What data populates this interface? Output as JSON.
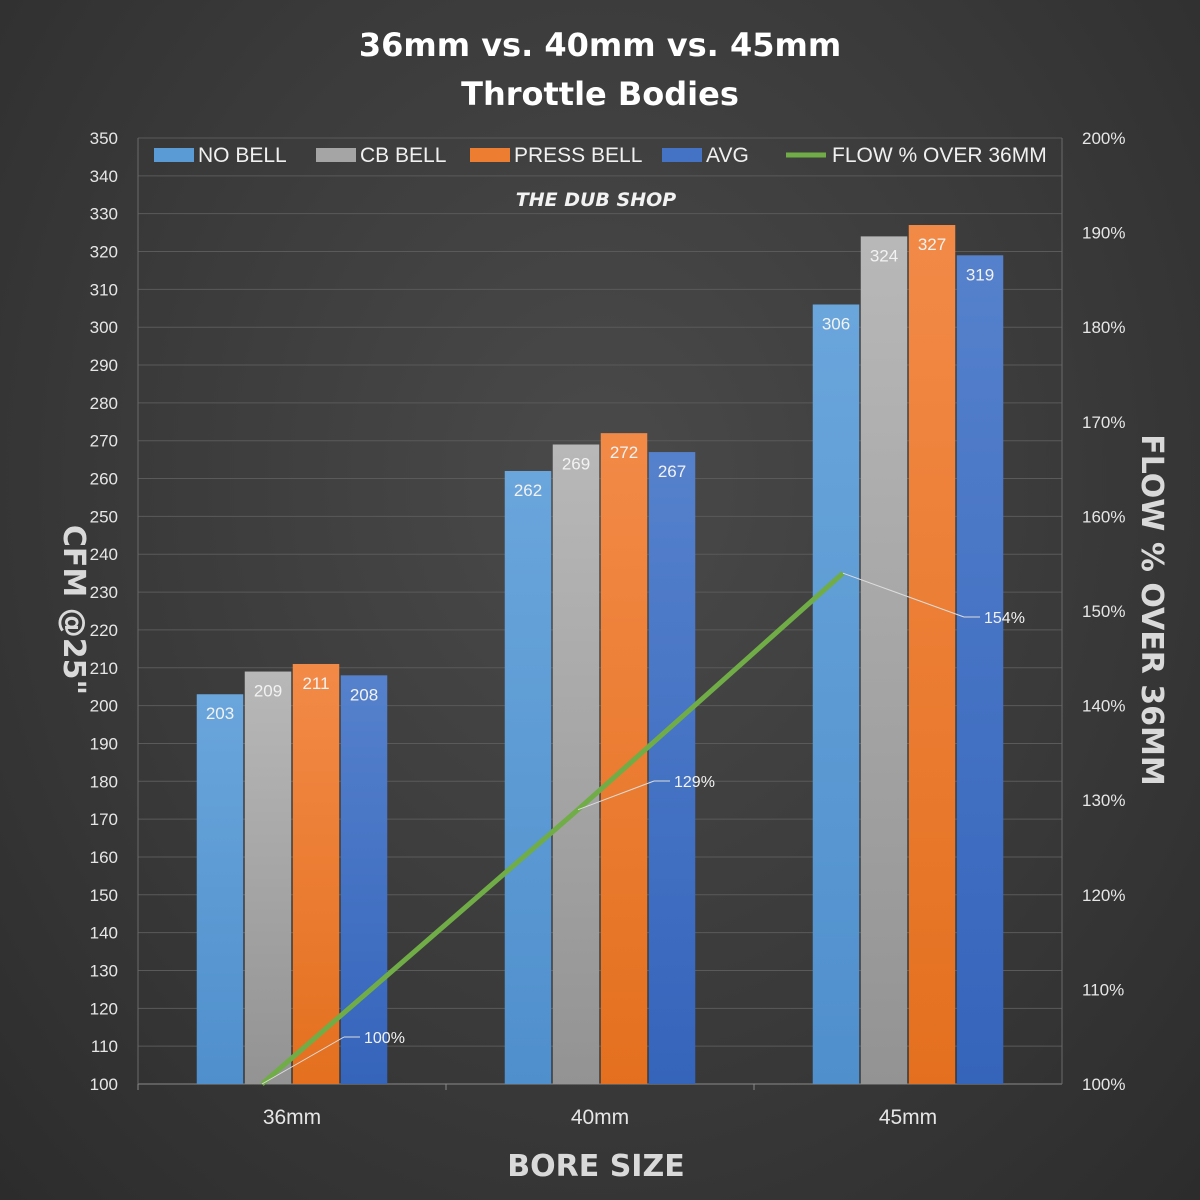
{
  "title_line1": "36mm vs. 40mm vs. 45mm",
  "title_line2": "Throttle Bodies",
  "watermark": "THE DUB SHOP",
  "chart_data": {
    "type": "bar",
    "categories": [
      "36mm",
      "40mm",
      "45mm"
    ],
    "series": [
      {
        "name": "NO BELL",
        "values": [
          203,
          262,
          306
        ],
        "color": "#5b9bd5"
      },
      {
        "name": "CB BELL",
        "values": [
          209,
          269,
          324
        ],
        "color": "#a5a5a5"
      },
      {
        "name": "PRESS BELL",
        "values": [
          211,
          272,
          327
        ],
        "color": "#ed7d31"
      },
      {
        "name": "AVG",
        "values": [
          208,
          267,
          319
        ],
        "color": "#4472c4"
      }
    ],
    "line_series": {
      "name": "FLOW % OVER 36MM",
      "values": [
        100,
        129,
        154
      ],
      "labels": [
        "100%",
        "129%",
        "154%"
      ],
      "color": "#70ad47"
    },
    "xlabel": "BORE SIZE",
    "ylabel": "CFM @25\"",
    "y2label": "FLOW % OVER 36MM",
    "ylim": [
      100,
      350
    ],
    "y2lim": [
      100,
      200
    ],
    "yticks": [
      "100",
      "110",
      "120",
      "130",
      "140",
      "150",
      "160",
      "170",
      "180",
      "190",
      "200",
      "210",
      "220",
      "230",
      "240",
      "250",
      "260",
      "270",
      "280",
      "290",
      "300",
      "310",
      "320",
      "330",
      "340",
      "350"
    ],
    "y2ticks": [
      "100%",
      "110%",
      "120%",
      "130%",
      "140%",
      "150%",
      "160%",
      "170%",
      "180%",
      "190%",
      "200%"
    ],
    "grid": true,
    "legend_position": "top"
  }
}
